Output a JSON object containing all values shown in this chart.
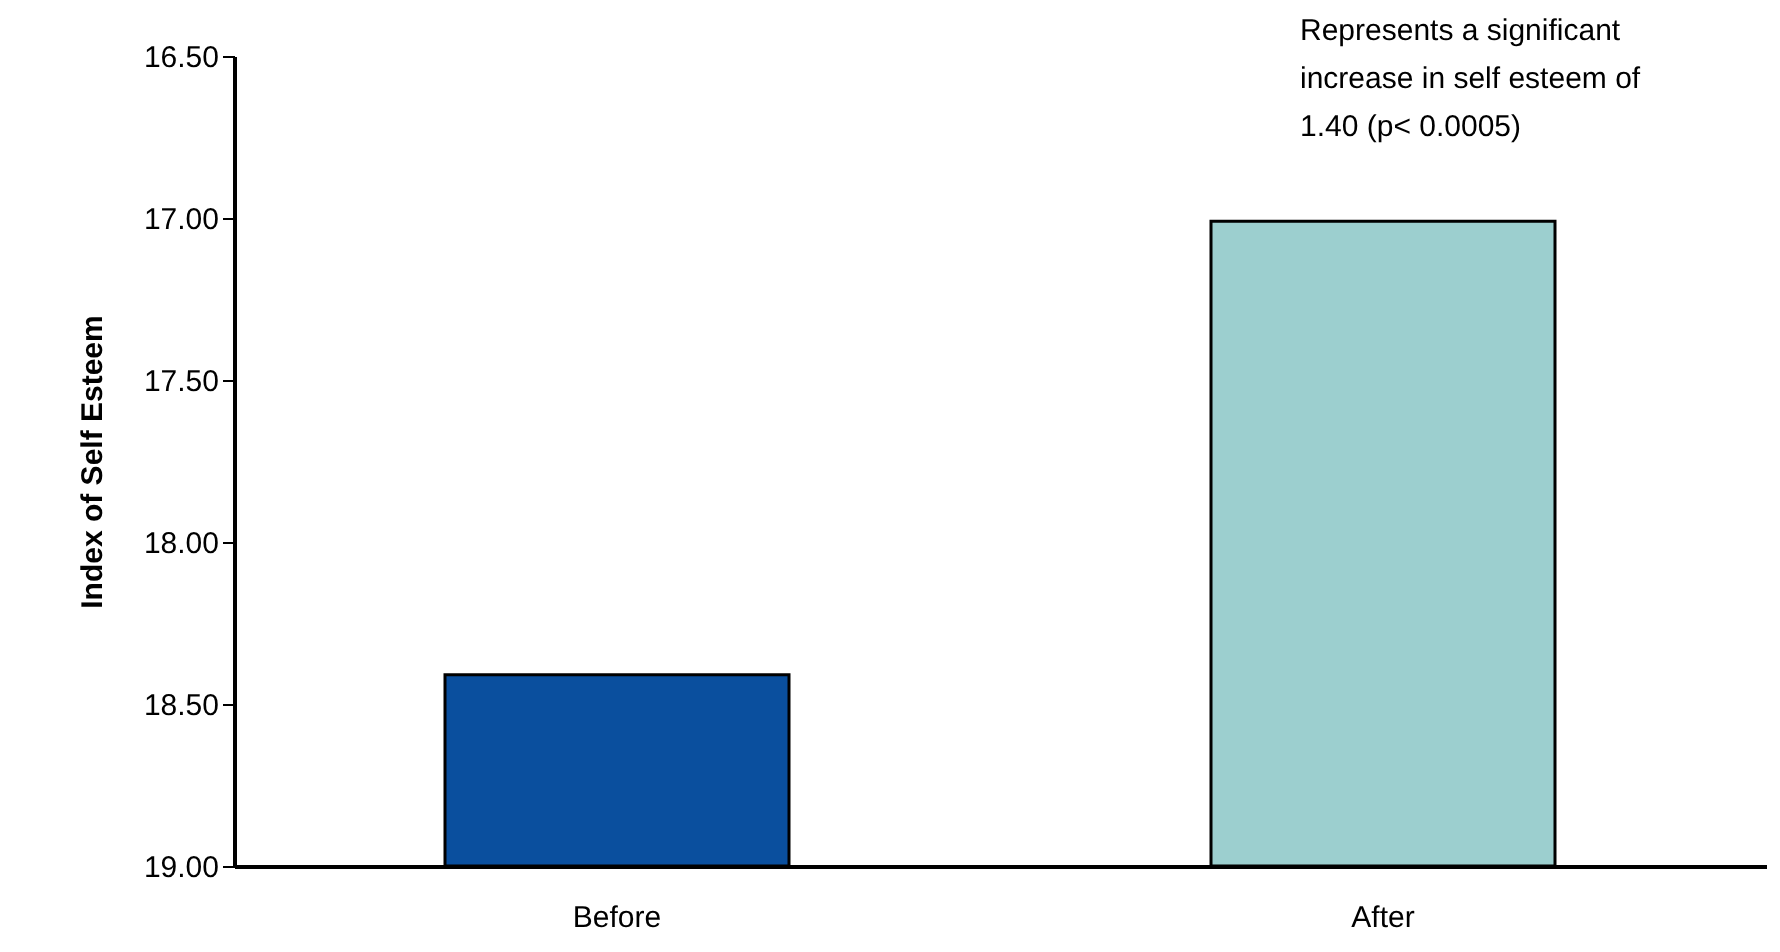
{
  "chart_data": {
    "type": "bar",
    "ylabel": "Index of Self Esteem",
    "categories": [
      "Before",
      "After"
    ],
    "values": [
      -0.59,
      -1.99
    ],
    "base": [
      19.0,
      19.0
    ],
    "colors": [
      "#0a4f9e",
      "#9ccfcf"
    ],
    "ylim": [
      19.0,
      16.5
    ],
    "yticks": [
      {
        "value": 16.5,
        "label": "16.50"
      },
      {
        "value": 17.0,
        "label": "17.00"
      },
      {
        "value": 17.5,
        "label": "17.50"
      },
      {
        "value": 18.0,
        "label": "18.00"
      },
      {
        "value": 18.5,
        "label": "18.50"
      },
      {
        "value": 19.0,
        "label": "19.00"
      }
    ],
    "annotations": [
      "Represents a significant increase in self esteem of 1.40 (p< 0.0005)"
    ],
    "grid": false
  }
}
